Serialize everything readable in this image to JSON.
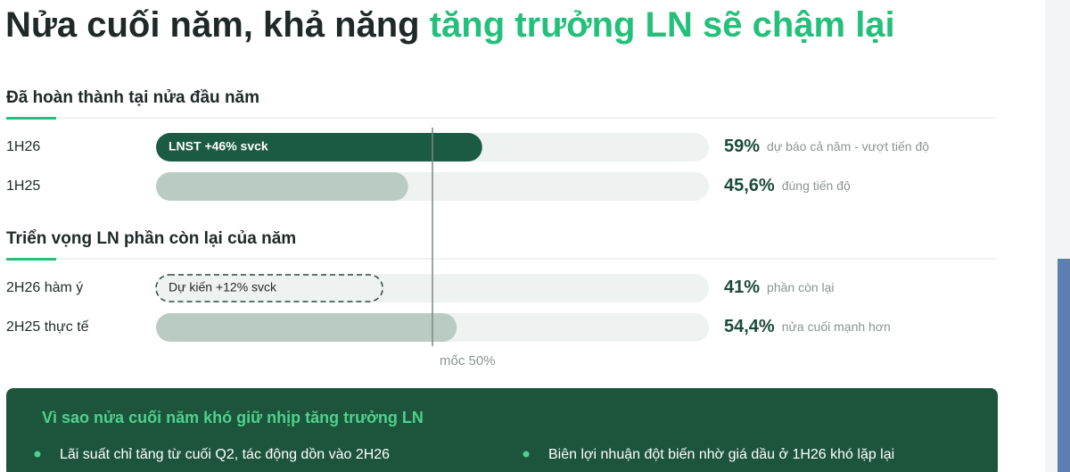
{
  "title": {
    "plain": "Nửa cuối năm, khả năng ",
    "highlight": "tăng trưởng LN sẽ chậm lại"
  },
  "chart_data": {
    "type": "progress",
    "xlim": [
      0,
      100
    ],
    "reference": {
      "value": 50,
      "label": "mốc 50%"
    },
    "groups": [
      {
        "title": "Đã hoàn thành tại nửa đầu năm",
        "rows": [
          {
            "label": "1H26",
            "value": 59,
            "value_label": "59%",
            "note": "dự báo cả năm - vượt tiến độ",
            "bar_text": "LNST +46% svck",
            "color": "#1b5a43"
          },
          {
            "label": "1H25",
            "value": 45.6,
            "value_label": "45,6%",
            "note": "đúng tiến độ",
            "color": "#b9cbc2"
          }
        ]
      },
      {
        "title": "Triển vọng LN phần còn lại của năm",
        "rows": [
          {
            "label": "2H26 hàm ý",
            "value": 41,
            "value_label": "41%",
            "note": "phần còn lại",
            "bar_text": "Dự kiến +12% svck",
            "dashed": true,
            "color": "#2e4a3e"
          },
          {
            "label": "2H25 thực tế",
            "value": 54.4,
            "value_label": "54,4%",
            "note": "nửa cuối mạnh hơn",
            "color": "#b9cbc2"
          }
        ]
      }
    ]
  },
  "panel": {
    "title": "Vì sao nửa cuối năm khó giữ nhịp tăng trưởng LN",
    "bullets": [
      "Lãi suất chỉ tăng từ cuối Q2, tác động dồn vào 2H26",
      "Biên lợi nhuận đột biến nhờ giá dầu ở 1H26 khó lặp lại"
    ]
  }
}
